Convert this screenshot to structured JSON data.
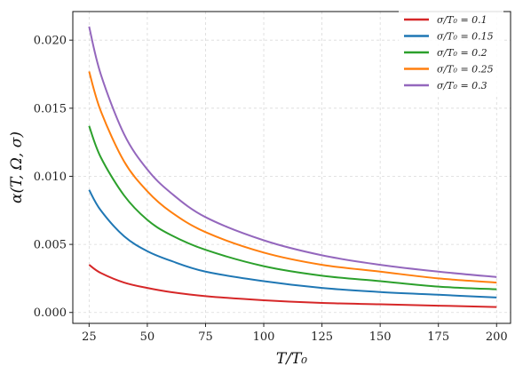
{
  "chart_data": {
    "type": "line",
    "xlabel": "T/T₀",
    "ylabel": "α(T, Ω, σ)",
    "xlim": [
      18,
      206
    ],
    "ylim": [
      -0.0008,
      0.0221
    ],
    "grid": true,
    "legend_position": "top-right",
    "x_ticks": [
      25,
      50,
      75,
      100,
      125,
      150,
      175,
      200
    ],
    "x_tick_labels": [
      "25",
      "50",
      "75",
      "100",
      "125",
      "150",
      "175",
      "200"
    ],
    "y_ticks": [
      0.0,
      0.005,
      0.01,
      0.015,
      0.02
    ],
    "y_tick_labels": [
      "0.000",
      "0.005",
      "0.010",
      "0.015",
      "0.020"
    ],
    "x": [
      25,
      30,
      40,
      50,
      60,
      75,
      100,
      125,
      150,
      175,
      200
    ],
    "series": [
      {
        "name": "σ/T₀ = 0.1",
        "color": "#d62728",
        "values": [
          0.0035,
          0.0029,
          0.0022,
          0.0018,
          0.0015,
          0.0012,
          0.0009,
          0.0007,
          0.0006,
          0.0005,
          0.0004
        ]
      },
      {
        "name": "σ/T₀ = 0.15",
        "color": "#1f77b4",
        "values": [
          0.009,
          0.0075,
          0.0056,
          0.0045,
          0.0038,
          0.003,
          0.0023,
          0.0018,
          0.0015,
          0.0013,
          0.0011
        ]
      },
      {
        "name": "σ/T₀ = 0.2",
        "color": "#2ca02c",
        "values": [
          0.0137,
          0.0114,
          0.0086,
          0.0068,
          0.0057,
          0.0046,
          0.0034,
          0.0027,
          0.0023,
          0.0019,
          0.0017
        ]
      },
      {
        "name": "σ/T₀ = 0.25",
        "color": "#ff7f0e",
        "values": [
          0.0177,
          0.0148,
          0.0111,
          0.0089,
          0.0074,
          0.0059,
          0.0044,
          0.0035,
          0.003,
          0.0025,
          0.0022
        ]
      },
      {
        "name": "σ/T₀ = 0.3",
        "color": "#9467bd",
        "values": [
          0.021,
          0.0175,
          0.0131,
          0.0105,
          0.0088,
          0.007,
          0.0053,
          0.0042,
          0.0035,
          0.003,
          0.0026
        ]
      }
    ]
  }
}
